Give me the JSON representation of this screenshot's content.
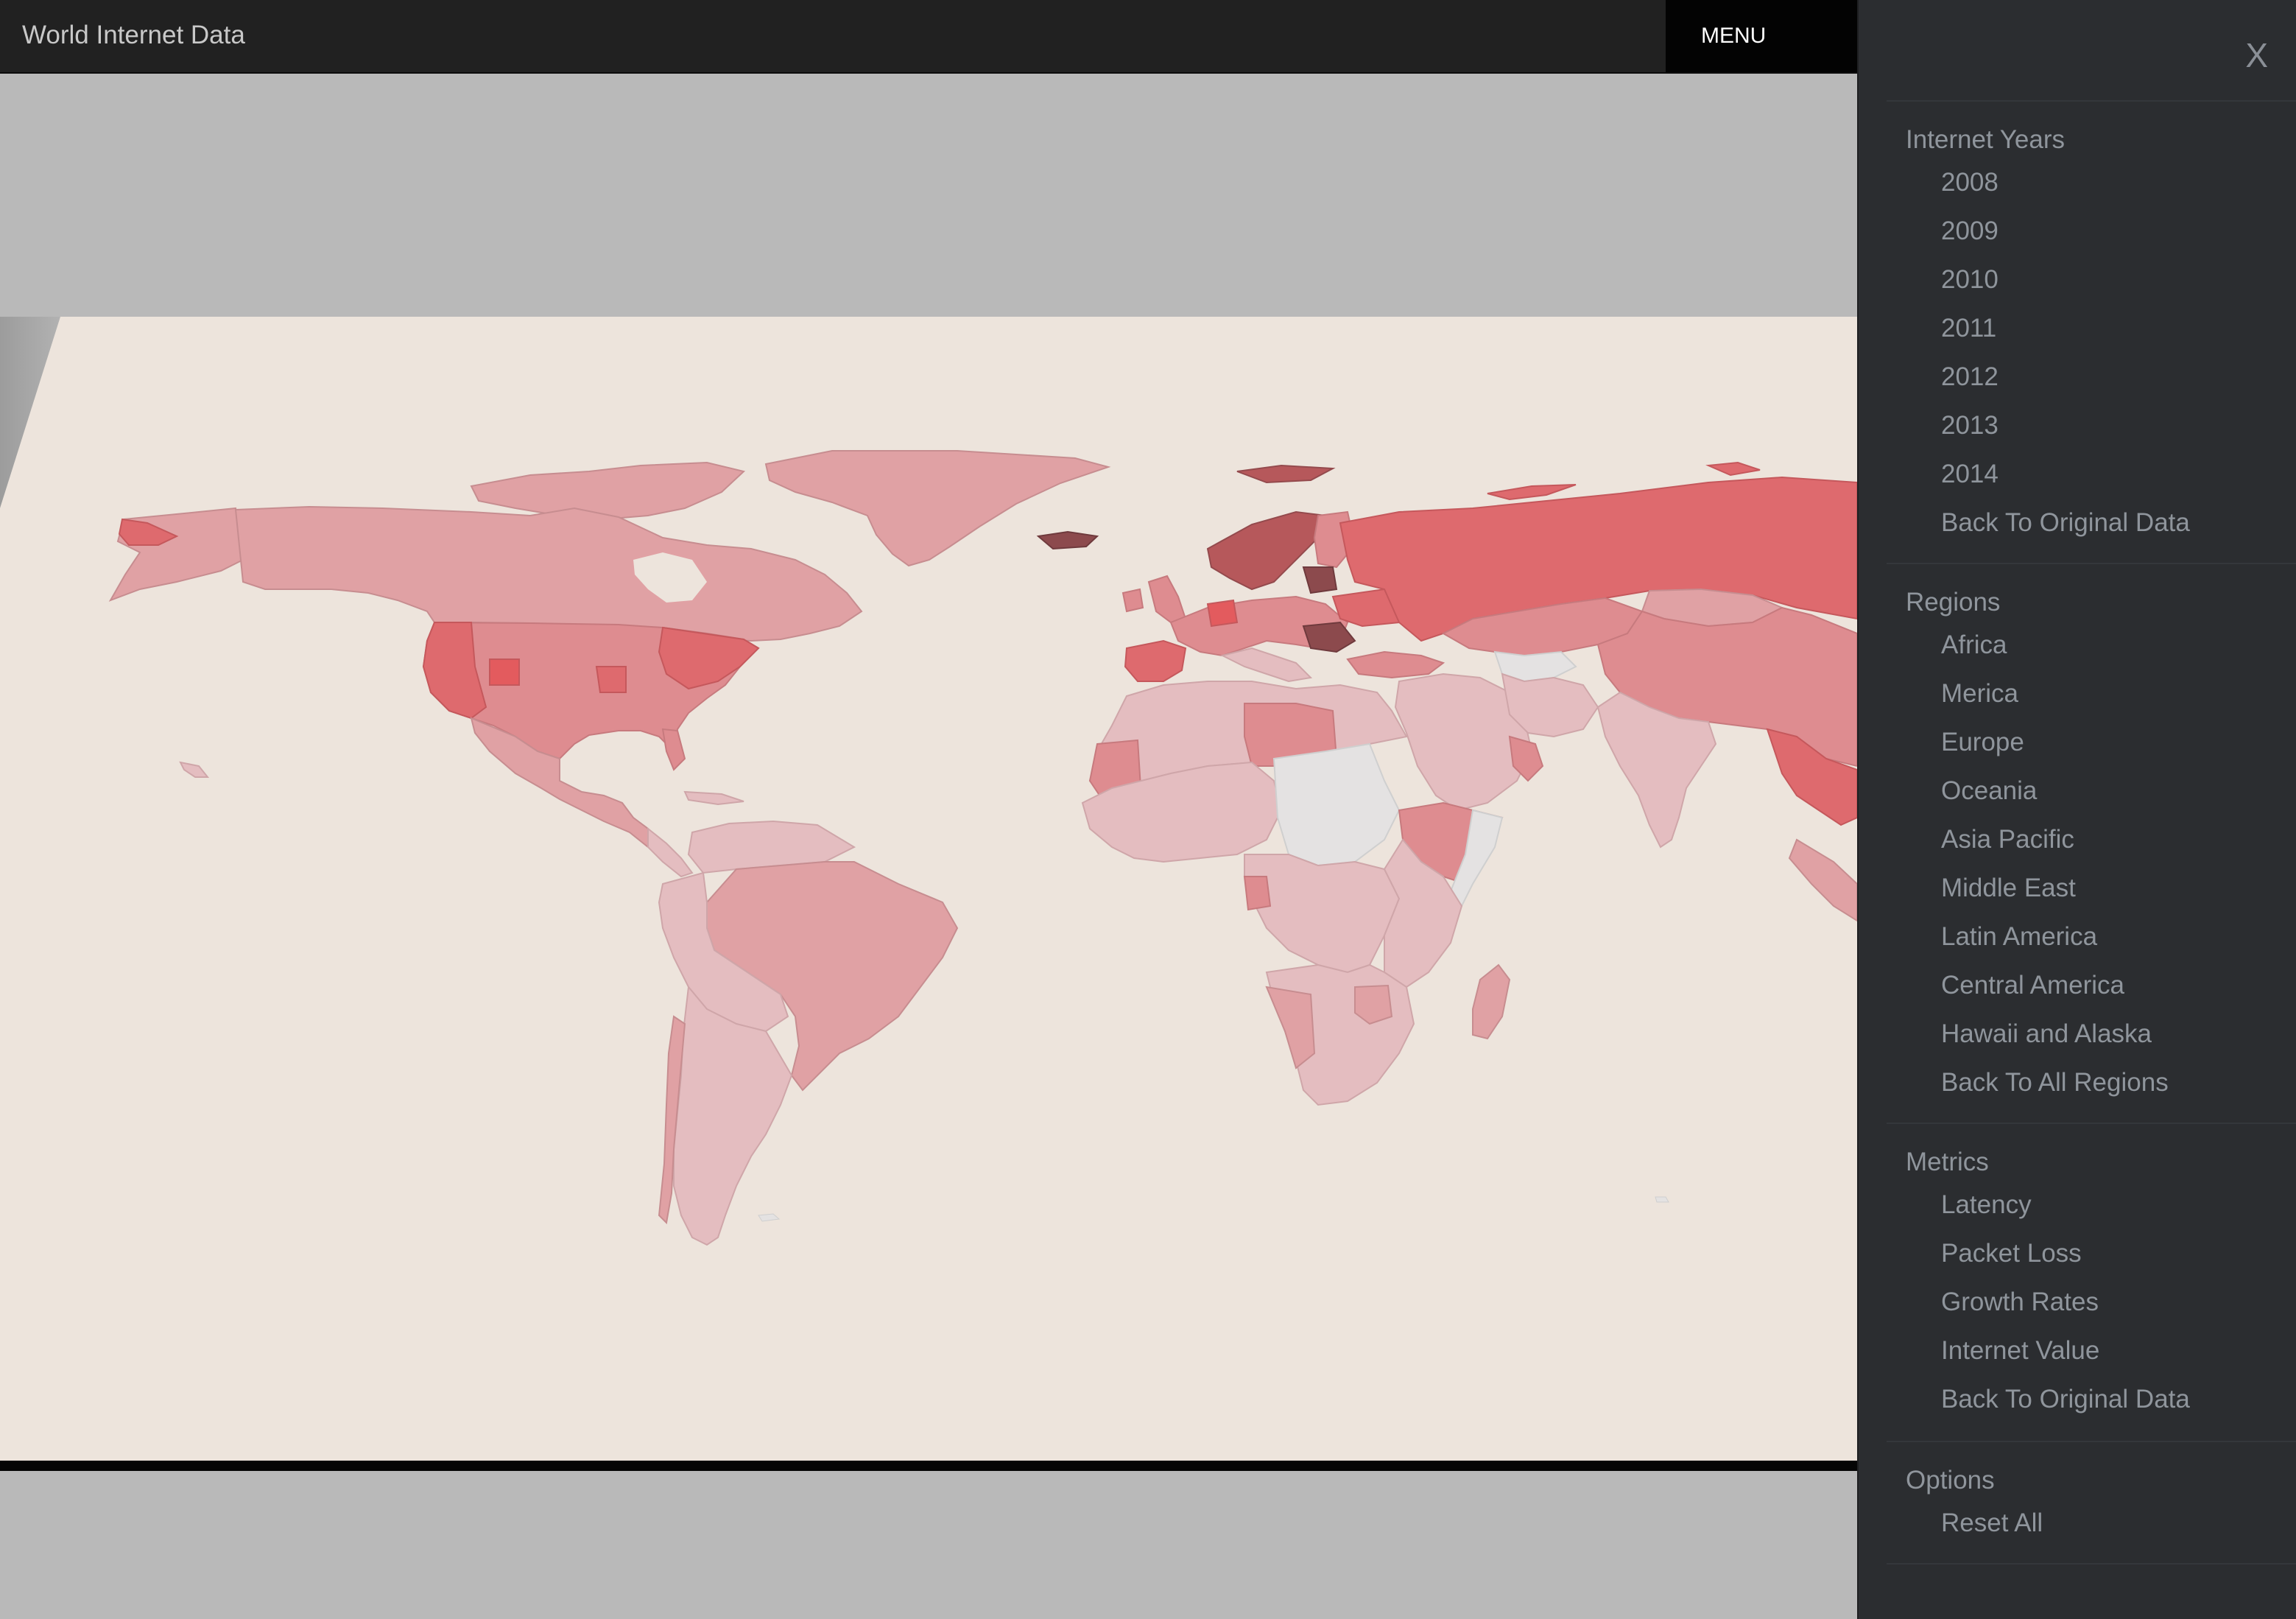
{
  "header": {
    "title": "World Internet Data",
    "menu_label": "MENU"
  },
  "sidemenu": {
    "close_label": "X",
    "sections": [
      {
        "heading": "Internet Years",
        "items": [
          "2008",
          "2009",
          "2010",
          "2011",
          "2012",
          "2013",
          "2014",
          "Back To Original Data"
        ]
      },
      {
        "heading": "Regions",
        "items": [
          "Africa",
          "Merica",
          "Europe",
          "Oceania",
          "Asia Pacific",
          "Middle East",
          "Latin America",
          "Central America",
          "Hawaii and Alaska",
          "Back To All Regions"
        ]
      },
      {
        "heading": "Metrics",
        "items": [
          "Latency",
          "Packet Loss",
          "Growth Rates",
          "Internet Value",
          "Back To Original Data"
        ]
      },
      {
        "heading": "Options",
        "items": [
          "Reset All"
        ]
      }
    ]
  },
  "map": {
    "ocean_color": "#ede4dc",
    "choropleth_colors": [
      "#e4e2e2",
      "#e4bdc0",
      "#e0a1a4",
      "#de8c90",
      "#de6a6e",
      "#e35b5e",
      "#b6585b",
      "#8c4a4d"
    ]
  }
}
